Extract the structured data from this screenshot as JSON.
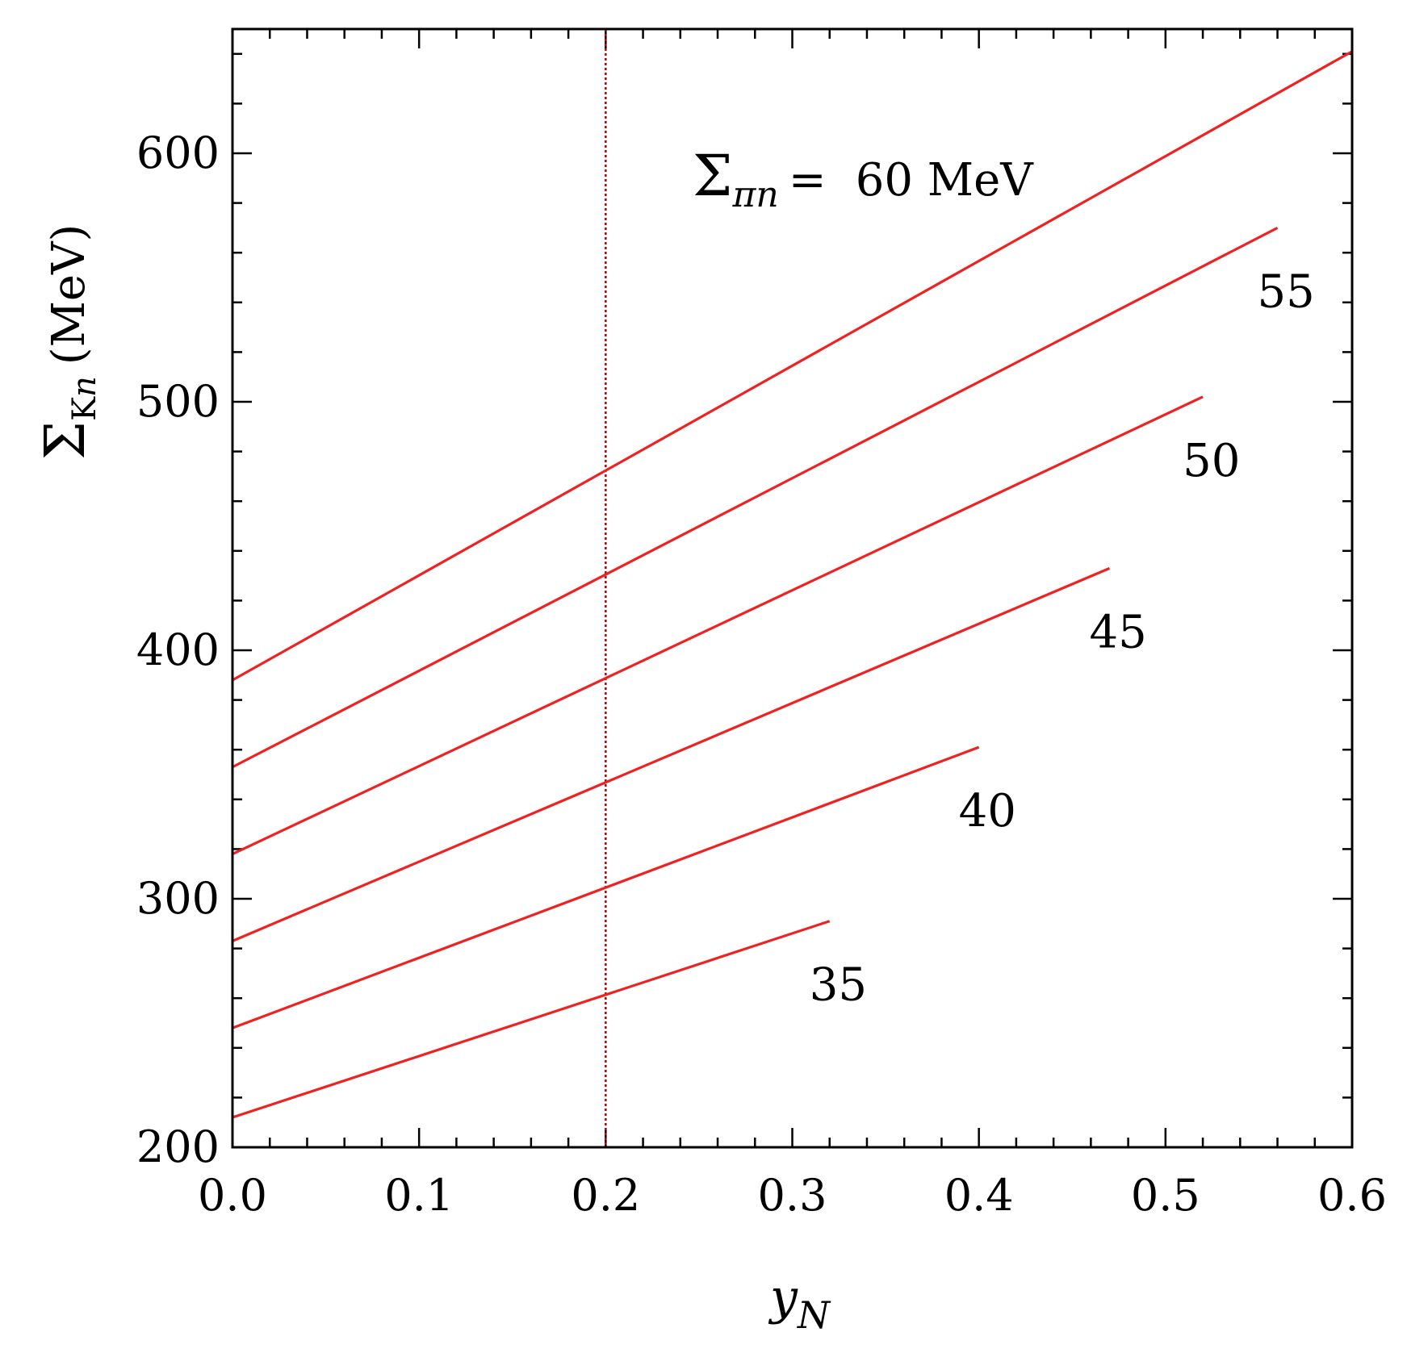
{
  "chart_data": {
    "type": "line",
    "xlabel": "y",
    "xlabel_sub": "N",
    "ylabel_symbol": "Σ",
    "ylabel_sub_K": "K",
    "ylabel_sub_n": "n",
    "ylabel_units": "(MeV)",
    "xlim": [
      0.0,
      0.6
    ],
    "ylim": [
      200,
      650
    ],
    "x_ticks": [
      "0.0",
      "0.1",
      "0.2",
      "0.3",
      "0.4",
      "0.5",
      "0.6"
    ],
    "x_tick_values": [
      0.0,
      0.1,
      0.2,
      0.3,
      0.4,
      0.5,
      0.6
    ],
    "y_ticks": [
      "200",
      "300",
      "400",
      "500",
      "600"
    ],
    "y_tick_values": [
      200,
      300,
      400,
      500,
      600
    ],
    "grid": false,
    "reference_line": {
      "x": 0.2,
      "style": "dotted",
      "color": "#c00000"
    },
    "line_color": "#ee2222",
    "annotation": {
      "symbol": "Σ",
      "sub_pi": "π",
      "sub_n": "n",
      "equals": "=",
      "value_text": "60 MeV"
    },
    "series": [
      {
        "label": "",
        "x": [
          0.0,
          0.6
        ],
        "y": [
          388,
          641
        ]
      },
      {
        "label": "55",
        "x": [
          0.0,
          0.56
        ],
        "y": [
          353,
          570
        ]
      },
      {
        "label": "50",
        "x": [
          0.0,
          0.52
        ],
        "y": [
          318,
          502
        ]
      },
      {
        "label": "45",
        "x": [
          0.0,
          0.47
        ],
        "y": [
          283,
          433
        ]
      },
      {
        "label": "40",
        "x": [
          0.0,
          0.4
        ],
        "y": [
          248,
          361
        ]
      },
      {
        "label": "35",
        "x": [
          0.0,
          0.32
        ],
        "y": [
          212,
          291
        ]
      }
    ]
  }
}
